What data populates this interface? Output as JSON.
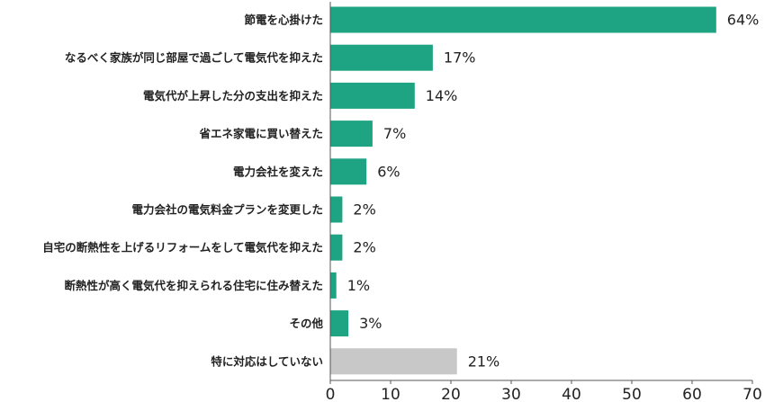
{
  "chart_data": {
    "type": "bar",
    "orientation": "horizontal",
    "categories": [
      "節電を心掛けた",
      "なるべく家族が同じ部屋で過ごして電気代を抑えた",
      "電気代が上昇した分の支出を抑えた",
      "省エネ家電に買い替えた",
      "電力会社を変えた",
      "電力会社の電気料金プランを変更した",
      "自宅の断熱性を上げるリフォームをして電気代を抑えた",
      "断熱性が高く電気代を抑えられる住宅に住み替えた",
      "その他",
      "特に対応はしていない"
    ],
    "values": [
      64,
      17,
      14,
      7,
      6,
      2,
      2,
      1,
      3,
      21
    ],
    "value_labels": [
      "64%",
      "17%",
      "14%",
      "7%",
      "6%",
      "2%",
      "2%",
      "1%",
      "3%",
      "21%"
    ],
    "bar_colors": [
      "#1ea383",
      "#1ea383",
      "#1ea383",
      "#1ea383",
      "#1ea383",
      "#1ea383",
      "#1ea383",
      "#1ea383",
      "#1ea383",
      "#c8c8c8"
    ],
    "xlim": [
      0,
      70
    ],
    "xticks": [
      0,
      10,
      20,
      30,
      40,
      50,
      60,
      70
    ],
    "title": "",
    "xlabel": "",
    "ylabel": "",
    "grid": false,
    "legend": "none"
  }
}
